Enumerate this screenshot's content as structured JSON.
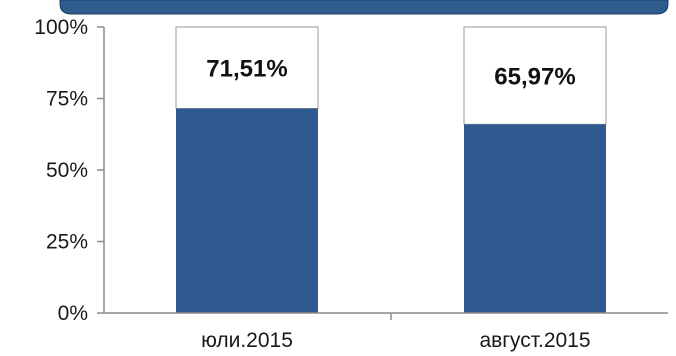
{
  "chart_data": {
    "type": "bar",
    "stacked": true,
    "categories": [
      "юли.2015",
      "август.2015"
    ],
    "values": [
      71.51,
      65.97
    ],
    "value_labels": [
      "71,51%",
      "65,97%"
    ],
    "remainder_values": [
      28.49,
      34.03
    ],
    "ylim": [
      0,
      100
    ],
    "yticks": [
      0,
      25,
      50,
      75,
      100
    ],
    "ytick_labels": [
      "0%",
      "25%",
      "50%",
      "75%",
      "100%"
    ],
    "grid": false,
    "legend": "none",
    "colors": {
      "bar": "#2F5A8F",
      "remainder": "#FFFFFF",
      "outline": "#9a9a9a",
      "axis": "#8a8a8a",
      "header_band": "#2E5D8E"
    }
  }
}
